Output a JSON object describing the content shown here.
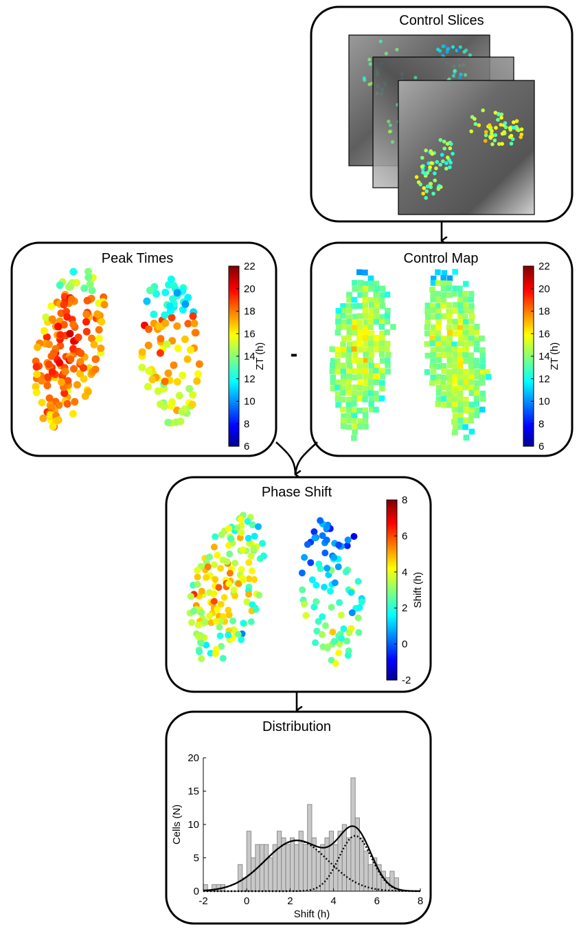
{
  "panels": {
    "control_slices": {
      "title": "Control Slices"
    },
    "peak_times": {
      "title": "Peak Times",
      "colorbar": {
        "label": "ZT (h)",
        "ticks": [
          "22",
          "20",
          "18",
          "16",
          "14",
          "12",
          "10",
          "8",
          "6"
        ],
        "min": 6,
        "max": 22
      }
    },
    "control_map": {
      "title": "Control Map",
      "colorbar": {
        "label": "ZT (h)",
        "ticks": [
          "22",
          "20",
          "18",
          "16",
          "14",
          "12",
          "10",
          "8",
          "6"
        ],
        "min": 6,
        "max": 22
      }
    },
    "phase_shift": {
      "title": "Phase Shift",
      "colorbar": {
        "label": "Shift (h)",
        "ticks": [
          "8",
          "6",
          "4",
          "2",
          "0",
          "-2"
        ],
        "min": -2,
        "max": 8
      }
    },
    "distribution": {
      "title": "Distribution"
    }
  },
  "operator": {
    "minus": "-"
  },
  "colormap": "jet",
  "chart_data": {
    "type": "bar",
    "title": "Distribution",
    "xlabel": "Shift (h)",
    "ylabel": "Cells (N)",
    "xlim": [
      -2,
      8
    ],
    "ylim": [
      0,
      20
    ],
    "xticks": [
      "-2",
      "0",
      "2",
      "4",
      "6",
      "8"
    ],
    "yticks": [
      "0",
      "5",
      "10",
      "15",
      "20"
    ],
    "bin_width": 0.2,
    "bins": [
      {
        "x": -1.9,
        "y": 1
      },
      {
        "x": -1.7,
        "y": 0
      },
      {
        "x": -1.5,
        "y": 1
      },
      {
        "x": -1.3,
        "y": 1
      },
      {
        "x": -1.1,
        "y": 1
      },
      {
        "x": -0.9,
        "y": 0
      },
      {
        "x": -0.7,
        "y": 0
      },
      {
        "x": -0.5,
        "y": 0
      },
      {
        "x": -0.3,
        "y": 4
      },
      {
        "x": -0.1,
        "y": 2
      },
      {
        "x": 0.1,
        "y": 9
      },
      {
        "x": 0.3,
        "y": 5
      },
      {
        "x": 0.5,
        "y": 7
      },
      {
        "x": 0.7,
        "y": 7
      },
      {
        "x": 0.9,
        "y": 7
      },
      {
        "x": 1.1,
        "y": 5
      },
      {
        "x": 1.3,
        "y": 7
      },
      {
        "x": 1.5,
        "y": 9
      },
      {
        "x": 1.7,
        "y": 8
      },
      {
        "x": 1.9,
        "y": 7
      },
      {
        "x": 2.1,
        "y": 8
      },
      {
        "x": 2.3,
        "y": 7
      },
      {
        "x": 2.5,
        "y": 9
      },
      {
        "x": 2.7,
        "y": 7
      },
      {
        "x": 2.9,
        "y": 13
      },
      {
        "x": 3.1,
        "y": 8
      },
      {
        "x": 3.3,
        "y": 6
      },
      {
        "x": 3.5,
        "y": 7
      },
      {
        "x": 3.7,
        "y": 8
      },
      {
        "x": 3.9,
        "y": 9
      },
      {
        "x": 4.1,
        "y": 7
      },
      {
        "x": 4.3,
        "y": 9
      },
      {
        "x": 4.5,
        "y": 10
      },
      {
        "x": 4.7,
        "y": 8
      },
      {
        "x": 4.9,
        "y": 17
      },
      {
        "x": 5.1,
        "y": 11
      },
      {
        "x": 5.3,
        "y": 8
      },
      {
        "x": 5.5,
        "y": 6
      },
      {
        "x": 5.7,
        "y": 4
      },
      {
        "x": 5.9,
        "y": 5
      },
      {
        "x": 6.1,
        "y": 4
      },
      {
        "x": 6.3,
        "y": 3
      },
      {
        "x": 6.5,
        "y": 2
      },
      {
        "x": 6.7,
        "y": 3
      },
      {
        "x": 6.9,
        "y": 2
      },
      {
        "x": 7.1,
        "y": 0
      },
      {
        "x": 7.3,
        "y": 0
      },
      {
        "x": 7.5,
        "y": 0
      },
      {
        "x": 7.7,
        "y": 0
      },
      {
        "x": 7.9,
        "y": 0
      }
    ],
    "fit": {
      "total": {
        "style": "solid",
        "color": "#000000"
      },
      "components": [
        {
          "mean": 2.3,
          "sd": 1.45,
          "amplitude": 7.6,
          "style": "dotted"
        },
        {
          "mean": 5.0,
          "sd": 0.75,
          "amplitude": 8.3,
          "style": "dotted"
        }
      ]
    }
  }
}
